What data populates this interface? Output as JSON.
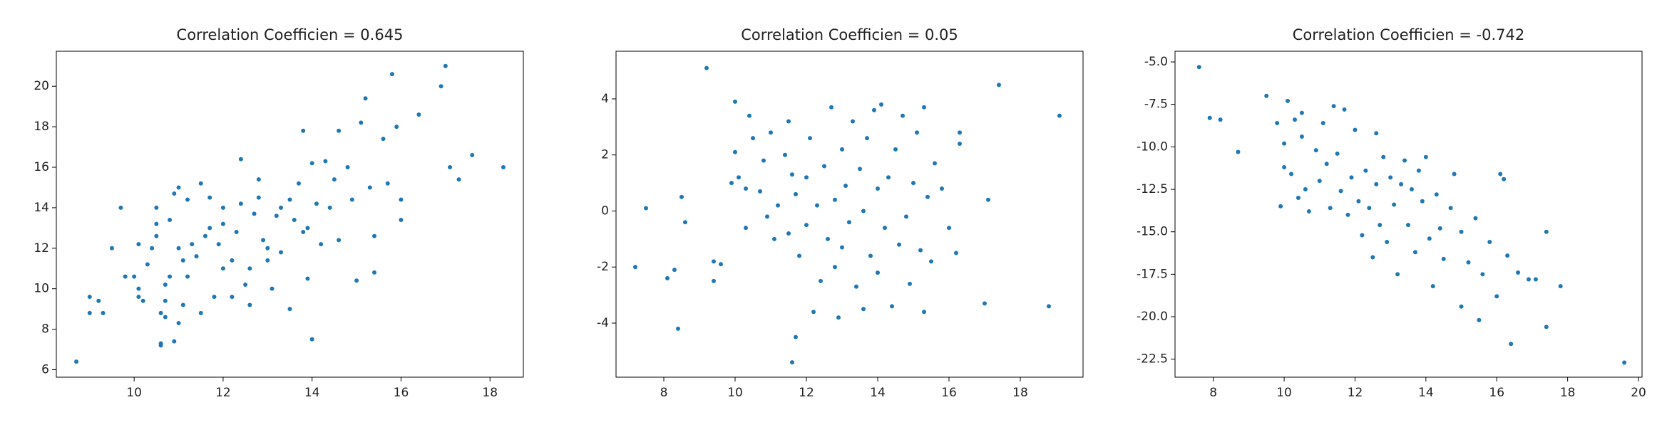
{
  "chart_data": [
    {
      "type": "scatter",
      "title": "Correlation Coefficien = 0.645",
      "color": "#1f77b4",
      "xlim": [
        8.25,
        18.75
      ],
      "ylim": [
        5.63,
        21.73
      ],
      "xticks": [
        10,
        12,
        14,
        16,
        18
      ],
      "yticks": [
        6,
        8,
        10,
        12,
        14,
        16,
        18,
        20
      ],
      "x": [
        8.7,
        9,
        9.3,
        9,
        9.2,
        9.5,
        9.7,
        9.8,
        10,
        10.1,
        10.1,
        10.2,
        10.1,
        10.3,
        10.4,
        10.5,
        10.5,
        10.5,
        10.6,
        10.6,
        10.6,
        10.7,
        10.7,
        10.7,
        10.8,
        10.8,
        10.9,
        10.9,
        11,
        11,
        11,
        11.1,
        11.1,
        11.2,
        11.2,
        11.3,
        11.4,
        11.5,
        11.5,
        11.6,
        11.7,
        11.7,
        11.8,
        11.9,
        12,
        12,
        12,
        12.2,
        12.2,
        12.3,
        12.4,
        12.4,
        12.5,
        12.6,
        12.6,
        12.7,
        12.8,
        12.8,
        12.9,
        13,
        13,
        13.1,
        13.2,
        13.3,
        13.3,
        13.5,
        13.5,
        13.6,
        13.7,
        13.8,
        13.8,
        13.9,
        13.9,
        14,
        14,
        14.1,
        14.2,
        14.3,
        14.4,
        14.5,
        14.6,
        14.6,
        14.8,
        14.9,
        15,
        15.1,
        15.2,
        15.3,
        15.4,
        15.4,
        15.6,
        15.7,
        15.8,
        15.9,
        16,
        16,
        16.4,
        16.9,
        17,
        17.1,
        17.3,
        17.6,
        18.3
      ],
      "values": [
        6.4,
        8.8,
        8.8,
        9.6,
        9.4,
        12,
        14,
        10.6,
        10.6,
        9.6,
        10,
        9.4,
        12.2,
        11.2,
        12,
        13.2,
        14,
        12.6,
        8.8,
        7.3,
        7.2,
        8.6,
        9.4,
        10.2,
        10.6,
        13.4,
        7.4,
        14.7,
        15,
        12,
        8.3,
        9.2,
        11.4,
        14.4,
        10.6,
        12.2,
        11.6,
        15.2,
        8.8,
        12.6,
        13,
        14.5,
        9.6,
        12.2,
        11,
        13.2,
        14,
        11.4,
        9.6,
        12.8,
        14.2,
        16.4,
        10.2,
        11,
        9.2,
        13.7,
        15.4,
        14.5,
        12.4,
        12,
        11.4,
        10,
        13.6,
        14,
        11.8,
        14.4,
        9,
        13.4,
        15.2,
        12.8,
        17.8,
        13,
        10.5,
        16.2,
        7.5,
        14.2,
        12.2,
        16.3,
        14,
        15.4,
        12.4,
        17.8,
        16,
        14.4,
        10.4,
        18.2,
        19.4,
        15,
        10.8,
        12.6,
        17.4,
        15.2,
        20.6,
        18,
        13.4,
        14.4,
        18.6,
        20,
        21,
        16,
        15.4,
        16.6,
        16
      ]
    },
    {
      "type": "scatter",
      "title": "Correlation Coefficien = 0.05",
      "color": "#1f77b4",
      "xlim": [
        6.66,
        19.76
      ],
      "ylim": [
        -5.93,
        5.7
      ],
      "xticks": [
        8,
        10,
        12,
        14,
        16,
        18
      ],
      "yticks": [
        -4,
        -2,
        0,
        2,
        4
      ],
      "x": [
        7.2,
        7.5,
        8.1,
        8.3,
        8.4,
        8.5,
        8.6,
        9.2,
        9.4,
        9.4,
        9.6,
        9.9,
        10,
        10,
        10.1,
        10.3,
        10.3,
        10.4,
        10.5,
        10.7,
        10.8,
        10.9,
        11,
        11.1,
        11.2,
        11.4,
        11.5,
        11.5,
        11.6,
        11.6,
        11.7,
        11.7,
        11.8,
        12,
        12,
        12.1,
        12.2,
        12.3,
        12.4,
        12.5,
        12.6,
        12.7,
        12.8,
        12.8,
        12.9,
        13,
        13,
        13.1,
        13.2,
        13.3,
        13.4,
        13.5,
        13.6,
        13.6,
        13.7,
        13.8,
        13.9,
        14,
        14,
        14.1,
        14.2,
        14.3,
        14.4,
        14.5,
        14.6,
        14.7,
        14.8,
        14.9,
        15,
        15.1,
        15.2,
        15.3,
        15.3,
        15.4,
        15.5,
        15.6,
        15.8,
        16,
        16.2,
        16.3,
        16.3,
        17,
        17.1,
        17.4,
        18.8,
        19.1
      ],
      "values": [
        -2,
        0.1,
        -2.4,
        -2.1,
        -4.2,
        0.5,
        -0.4,
        5.1,
        -1.8,
        -2.5,
        -1.9,
        1,
        2.1,
        3.9,
        1.2,
        0.8,
        -0.6,
        3.4,
        2.6,
        0.7,
        1.8,
        -0.2,
        2.8,
        -1,
        0.2,
        2,
        3.2,
        -0.8,
        1.3,
        -5.4,
        -4.5,
        0.6,
        -1.6,
        -0.5,
        1.2,
        2.6,
        -3.6,
        0.2,
        -2.5,
        1.6,
        -1,
        3.7,
        -2,
        0.4,
        -3.8,
        2.2,
        -1.3,
        0.9,
        -0.4,
        3.2,
        -2.7,
        1.5,
        -3.5,
        0,
        2.6,
        -1.6,
        3.6,
        0.8,
        -2.2,
        3.8,
        -0.6,
        1.2,
        -3.4,
        2.2,
        -1.2,
        3.4,
        -0.2,
        -2.6,
        1,
        2.8,
        -1.4,
        3.7,
        -3.6,
        0.5,
        -1.8,
        1.7,
        0.8,
        -0.6,
        -1.5,
        2.8,
        2.4,
        -3.3,
        0.4,
        4.5,
        -3.4,
        3.4
      ]
    },
    {
      "type": "scatter",
      "title": "Correlation Coefficien = -0.742",
      "color": "#1f77b4",
      "xlim": [
        6.92,
        20.1
      ],
      "ylim": [
        -23.56,
        -4.37
      ],
      "xticks": [
        8,
        10,
        12,
        14,
        16,
        18,
        20
      ],
      "yticks": [
        {
          "value": -5,
          "label": "-5.0"
        },
        {
          "value": -7.5,
          "label": "-7.5"
        },
        {
          "value": -10,
          "label": "-10.0"
        },
        {
          "value": -12.5,
          "label": "-12.5"
        },
        {
          "value": -15,
          "label": "-15.0"
        },
        {
          "value": -17.5,
          "label": "-17.5"
        },
        {
          "value": -20,
          "label": "-20.0"
        },
        {
          "value": -22.5,
          "label": "-22.5"
        }
      ],
      "x": [
        7.6,
        7.9,
        8.2,
        8.7,
        9.5,
        9.8,
        9.9,
        10,
        10,
        10.1,
        10.2,
        10.3,
        10.4,
        10.5,
        10.5,
        10.6,
        10.7,
        10.9,
        11,
        11.1,
        11.2,
        11.3,
        11.4,
        11.5,
        11.6,
        11.7,
        11.8,
        11.9,
        12,
        12.1,
        12.2,
        12.3,
        12.4,
        12.5,
        12.6,
        12.6,
        12.7,
        12.8,
        12.9,
        13,
        13.1,
        13.2,
        13.3,
        13.4,
        13.5,
        13.6,
        13.7,
        13.8,
        13.9,
        14,
        14.1,
        14.2,
        14.3,
        14.4,
        14.5,
        14.7,
        14.8,
        15,
        15,
        15.2,
        15.4,
        15.5,
        15.6,
        15.8,
        16,
        16.1,
        16.2,
        16.3,
        16.4,
        16.6,
        16.9,
        17.1,
        17.4,
        17.4,
        17.8,
        19.6
      ],
      "values": [
        -5.3,
        -8.3,
        -8.4,
        -10.3,
        -7,
        -8.6,
        -13.5,
        -9.8,
        -11.2,
        -7.3,
        -11.6,
        -8.4,
        -13,
        -8,
        -9.4,
        -12.5,
        -13.8,
        -10.2,
        -12,
        -8.6,
        -11,
        -13.6,
        -7.6,
        -10.4,
        -12.6,
        -7.8,
        -14,
        -11.8,
        -9,
        -13.2,
        -15.2,
        -11.4,
        -13.6,
        -16.5,
        -9.2,
        -12.2,
        -14.6,
        -10.6,
        -15.6,
        -11.8,
        -13.4,
        -17.5,
        -12.2,
        -10.8,
        -14.6,
        -12.5,
        -16.2,
        -11.4,
        -13.2,
        -10.6,
        -15.4,
        -18.2,
        -12.8,
        -14.8,
        -16.6,
        -13.6,
        -11.6,
        -15,
        -19.4,
        -16.8,
        -14.2,
        -20.2,
        -17.5,
        -15.6,
        -18.8,
        -11.6,
        -11.9,
        -16.4,
        -21.6,
        -17.4,
        -17.8,
        -17.8,
        -15,
        -20.6,
        -18.2,
        -22.7
      ]
    }
  ]
}
